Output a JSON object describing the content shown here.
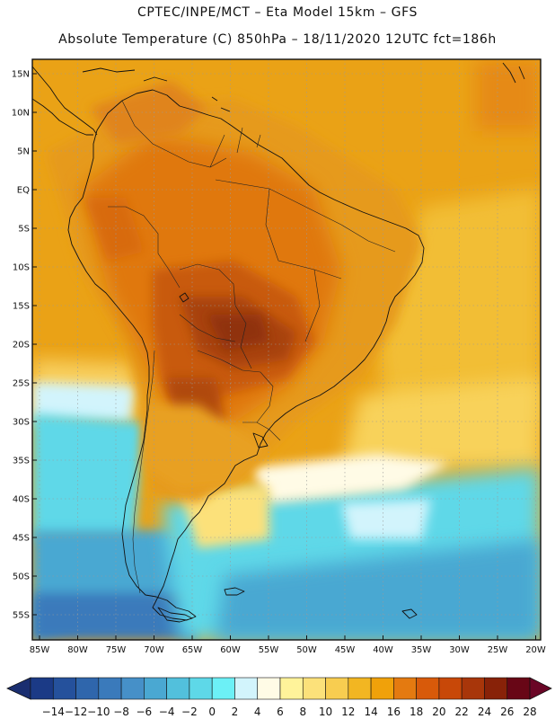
{
  "header": {
    "line1": "CPTEC/INPE/MCT –  Eta Model 15km – GFS",
    "line2": "Absolute Temperature (C) 850hPa – 18/11/2020 12UTC fct=186h"
  },
  "map": {
    "lat_labels": [
      "15N",
      "10N",
      "5N",
      "EQ",
      "5S",
      "10S",
      "15S",
      "20S",
      "25S",
      "30S",
      "35S",
      "40S",
      "45S",
      "50S",
      "55S"
    ],
    "lon_labels": [
      "85W",
      "80W",
      "75W",
      "70W",
      "65W",
      "60W",
      "55W",
      "50W",
      "45W",
      "40W",
      "35W",
      "30W",
      "25W",
      "20W"
    ]
  },
  "colorbar": {
    "labels": [
      "-14",
      "-12",
      "-10",
      "-8",
      "-6",
      "-4",
      "-2",
      "0",
      "2",
      "4",
      "6",
      "8",
      "10",
      "12",
      "14",
      "16",
      "18",
      "20",
      "22",
      "24",
      "26",
      "28"
    ],
    "colors": [
      "#1b3a86",
      "#25519c",
      "#2f66ac",
      "#3a7abb",
      "#4690c8",
      "#4aa8d2",
      "#52c0dc",
      "#5ed8e8",
      "#6cf0f6",
      "#d2f4fc",
      "#fffbe6",
      "#fff39a",
      "#fce17a",
      "#f8cd50",
      "#f2b622",
      "#f0a10a",
      "#e47a10",
      "#d85a0a",
      "#c84808",
      "#a8360a",
      "#882208",
      "#680616"
    ]
  },
  "colors": {
    "ocean_warm": "#eaa216",
    "ocean_cool": "#f0b828",
    "coast": "#111111"
  }
}
